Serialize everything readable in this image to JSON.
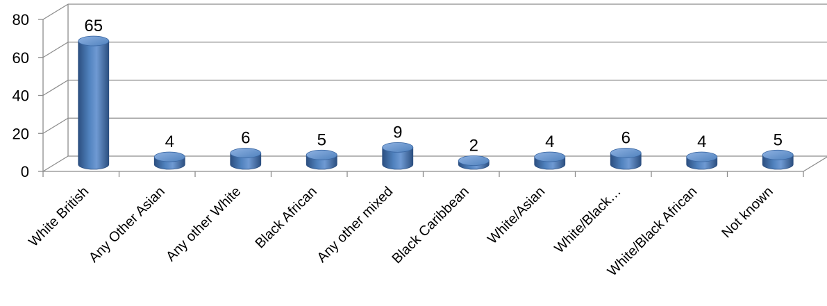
{
  "chart_data": {
    "type": "bar",
    "style": "3d-cylinder",
    "categories": [
      "White British",
      "Any Other Asian",
      "Any other White",
      "Black African",
      "Any other mixed",
      "Black Caribbean",
      "White/Asian",
      "White/Black…",
      "White/Black African",
      "Not known"
    ],
    "values": [
      65,
      4,
      6,
      5,
      9,
      2,
      4,
      6,
      4,
      5
    ],
    "value_labels": [
      "65",
      "4",
      "6",
      "5",
      "9",
      "2",
      "4",
      "6",
      "4",
      "5"
    ],
    "yticks": [
      "0",
      "20",
      "40",
      "60",
      "80"
    ],
    "ylim": [
      0,
      80
    ],
    "grid": true,
    "legend": "none",
    "colors": {
      "bar": "#4f81bd",
      "bar_dark": "#2c4f80",
      "bar_light": "#8fb2e2",
      "grid": "#8c8c8c",
      "text": "#000000"
    }
  }
}
